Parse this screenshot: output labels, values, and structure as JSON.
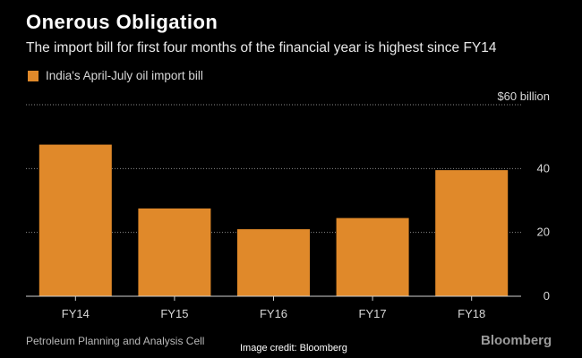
{
  "header": {
    "title": "Onerous Obligation",
    "subtitle": "The import bill for first four months of the financial year is highest since FY14"
  },
  "legend": {
    "label": "India's April-July oil import bill",
    "color": "#e0892a"
  },
  "footer": {
    "source": "Petroleum Planning and Analysis Cell",
    "credit": "Image credit: Bloomberg",
    "logo": "Bloomberg"
  },
  "chart_data": {
    "type": "bar",
    "title": "Onerous Obligation",
    "subtitle": "The import bill for first four months of the financial year is highest since FY14",
    "categories": [
      "FY14",
      "FY15",
      "FY16",
      "FY17",
      "FY18"
    ],
    "series": [
      {
        "name": "India's April-July oil import bill",
        "values": [
          47.5,
          27.5,
          21,
          24.5,
          39.5
        ],
        "color": "#e0892a"
      }
    ],
    "yticks": [
      0,
      20,
      40,
      60
    ],
    "ytick_labels": [
      "0",
      "20",
      "40",
      "$60 billion"
    ],
    "ylim": [
      0,
      60
    ],
    "xlabel": "",
    "ylabel": "",
    "grid": true,
    "colors": {
      "bar": "#e0892a",
      "grid": "#8a8a8a",
      "axis": "#cfcfcf",
      "text": "#d8d8d8"
    }
  }
}
